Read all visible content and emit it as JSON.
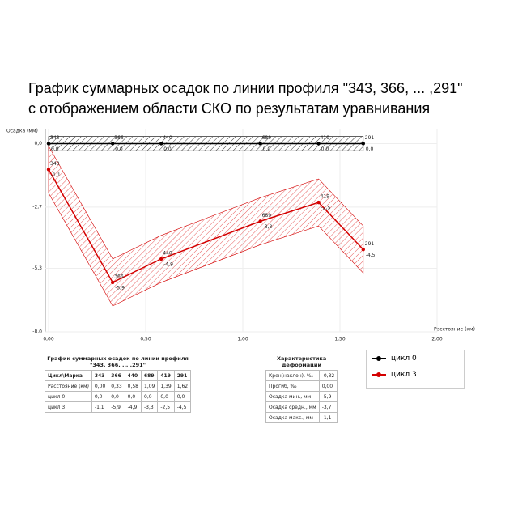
{
  "chart_data": {
    "type": "line",
    "title": "График суммарных осадок по линии профиля \"343, 366, ... ,291\"",
    "subtitle": "с отображением области СКО по результатам уравнивания",
    "y_label": "Осадка (мм)",
    "x_label": "Расстояние (км)",
    "point_names": [
      "343",
      "366",
      "440",
      "689",
      "419",
      "291"
    ],
    "x": [
      0.0,
      0.33,
      0.58,
      1.09,
      1.39,
      1.62
    ],
    "series": [
      {
        "name": "цикл 0",
        "color": "#000000",
        "values": [
          0.0,
          0.0,
          0.0,
          0.0,
          0.0,
          0.0
        ],
        "value_labels": [
          "0,0",
          "0,0",
          "0,0",
          "0,0",
          "0,0",
          "0,0"
        ],
        "sko": 0.3
      },
      {
        "name": "цикл 3",
        "color": "#d40000",
        "values": [
          -1.1,
          -5.9,
          -4.9,
          -3.3,
          -2.5,
          -4.5
        ],
        "value_labels": [
          "-1,1",
          "-5,9",
          "-4,9",
          "-3,3",
          "-2,5",
          "-4,5"
        ],
        "sko": 1.0
      }
    ],
    "xlim": [
      0,
      2.0
    ],
    "ylim": [
      -8.0,
      0.6
    ],
    "xticks": [
      {
        "value": 0,
        "label": "0,00"
      },
      {
        "value": 0.5,
        "label": "0,50"
      },
      {
        "value": 1.0,
        "label": "1,00"
      },
      {
        "value": 1.5,
        "label": "1,50"
      },
      {
        "value": 2.0,
        "label": "2,00"
      }
    ],
    "yticks": [
      {
        "value": 0,
        "label": "0,0"
      },
      {
        "value": -2.7,
        "label": "-2,7"
      },
      {
        "value": -5.3,
        "label": "-5,3"
      },
      {
        "value": -8.0,
        "label": "-8,0"
      }
    ],
    "grid": true
  },
  "tables": [
    {
      "title": "График суммарных осадок по линии профиля \"343, 366, ... ,291\"",
      "rows": [
        [
          "Цикл\\Марка",
          "343",
          "366",
          "440",
          "689",
          "419",
          "291"
        ],
        [
          "Расстояние (км)",
          "0,00",
          "0,33",
          "0,58",
          "1,09",
          "1,39",
          "1,62"
        ],
        [
          "цикл 0",
          "0,0",
          "0,0",
          "0,0",
          "0,0",
          "0,0",
          "0,0"
        ],
        [
          "цикл 3",
          "-1,1",
          "-5,9",
          "-4,9",
          "-3,3",
          "-2,5",
          "-4,5"
        ]
      ]
    },
    {
      "title": "Характеристика деформации",
      "rows": [
        [
          "Крен(наклон), ‰",
          "-0,32"
        ],
        [
          "Прогиб, ‰",
          "0,00"
        ],
        [
          "Осадка мин., мм",
          "-5,9"
        ],
        [
          "Осадка средн., мм",
          "-3,7"
        ],
        [
          "Осадка макс., мм",
          "-1,1"
        ]
      ]
    }
  ]
}
